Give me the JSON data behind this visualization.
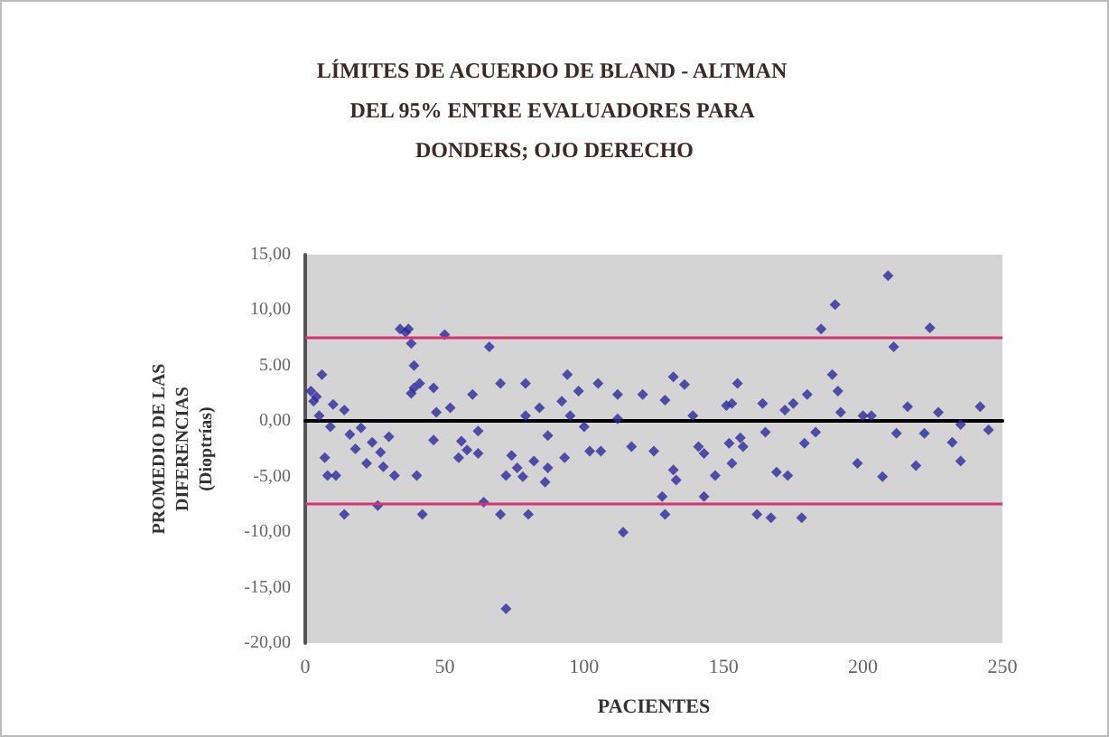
{
  "chart_data": {
    "type": "scatter",
    "title": "LÍMITES DE ACUERDO DE BLAND - ALTMAN DEL 95% ENTRE EVALUADORES PARA DONDERS; OJO DERECHO",
    "xlabel": "PACIENTES",
    "ylabel": "PROMEDIO DE LAS DIFERENCIAS (Dioptrías)",
    "x": [
      2,
      3,
      4,
      5,
      6,
      7,
      8,
      9,
      10,
      11,
      14,
      14,
      16,
      18,
      20,
      22,
      24,
      26,
      27,
      28,
      30,
      32,
      34,
      36,
      37,
      38,
      38,
      39,
      39,
      40,
      41,
      42,
      46,
      46,
      47,
      50,
      52,
      55,
      56,
      58,
      60,
      62,
      62,
      64,
      66,
      70,
      70,
      72,
      72,
      74,
      76,
      78,
      79,
      79,
      80,
      82,
      84,
      86,
      87,
      87,
      92,
      93,
      94,
      95,
      98,
      100,
      102,
      105,
      106,
      112,
      112,
      114,
      117,
      121,
      125,
      128,
      129,
      129,
      132,
      132,
      133,
      136,
      139,
      141,
      143,
      143,
      147,
      151,
      152,
      153,
      153,
      155,
      156,
      157,
      162,
      164,
      165,
      167,
      169,
      172,
      173,
      175,
      178,
      179,
      180,
      183,
      185,
      189,
      190,
      191,
      192,
      198,
      200,
      203,
      207,
      209,
      211,
      212,
      216,
      219,
      222,
      224,
      227,
      232,
      235,
      235,
      242,
      245
    ],
    "values": [
      2.7,
      1.8,
      2.2,
      0.5,
      4.2,
      -3.3,
      -4.9,
      -0.5,
      1.5,
      -4.9,
      1,
      -8.4,
      -1.2,
      -2.5,
      -0.6,
      -3.8,
      -1.9,
      -7.6,
      -2.8,
      -4.1,
      -1.4,
      -4.9,
      8.3,
      8,
      8.3,
      7,
      2.5,
      5,
      3,
      -4.9,
      3.4,
      -8.4,
      3,
      -1.7,
      0.8,
      7.8,
      1.2,
      -3.3,
      -1.8,
      -2.6,
      2.4,
      -0.9,
      -2.9,
      -7.3,
      6.7,
      3.4,
      -8.4,
      -4.9,
      -16.9,
      -3.1,
      -4.2,
      -5,
      3.4,
      0.5,
      -8.4,
      -3.6,
      1.2,
      -5.5,
      -4.2,
      -1.3,
      1.8,
      -3.3,
      4.2,
      0.5,
      2.7,
      -0.5,
      -2.7,
      3.4,
      -2.7,
      2.4,
      0.2,
      -10,
      -2.3,
      2.4,
      -2.7,
      -6.8,
      -8.4,
      1.9,
      4,
      -4.4,
      -5.3,
      3.3,
      0.5,
      -2.3,
      -2.9,
      -6.8,
      -4.9,
      1.4,
      -2,
      1.6,
      -3.8,
      3.4,
      -1.5,
      -2.3,
      -8.4,
      1.6,
      -1,
      -8.7,
      -4.6,
      1,
      -4.9,
      1.6,
      -8.7,
      -2,
      2.4,
      -1,
      8.3,
      4.2,
      10.5,
      2.7,
      0.8,
      -3.8,
      0.5,
      0.5,
      -5,
      13.1,
      6.7,
      -1.1,
      1.3,
      -4,
      -1.1,
      8.4,
      0.8,
      -1.9,
      -0.3,
      -3.6,
      1.3,
      -0.8
    ],
    "color": "#2b2b9c",
    "xlim": [
      0,
      250
    ],
    "xticks": [
      0,
      50,
      100,
      150,
      200,
      250
    ],
    "ylim": [
      -20,
      15
    ],
    "yticks": [
      {
        "value": -20,
        "label": "-20,00"
      },
      {
        "value": -15,
        "label": "-15,00"
      },
      {
        "value": -10,
        "label": "-10,00"
      },
      {
        "value": -5,
        "label": "-5,00"
      },
      {
        "value": 0,
        "label": "0,00"
      },
      {
        "value": 5,
        "label": "5.00"
      },
      {
        "value": 10,
        "label": "10,00"
      },
      {
        "value": 15,
        "label": "15,00"
      }
    ],
    "ref_lines": [
      {
        "axis": "y",
        "value": 7.6,
        "color": "#d8336e"
      },
      {
        "axis": "y",
        "value": -7.4,
        "color": "#d8336e"
      }
    ],
    "marker": "diamond"
  }
}
